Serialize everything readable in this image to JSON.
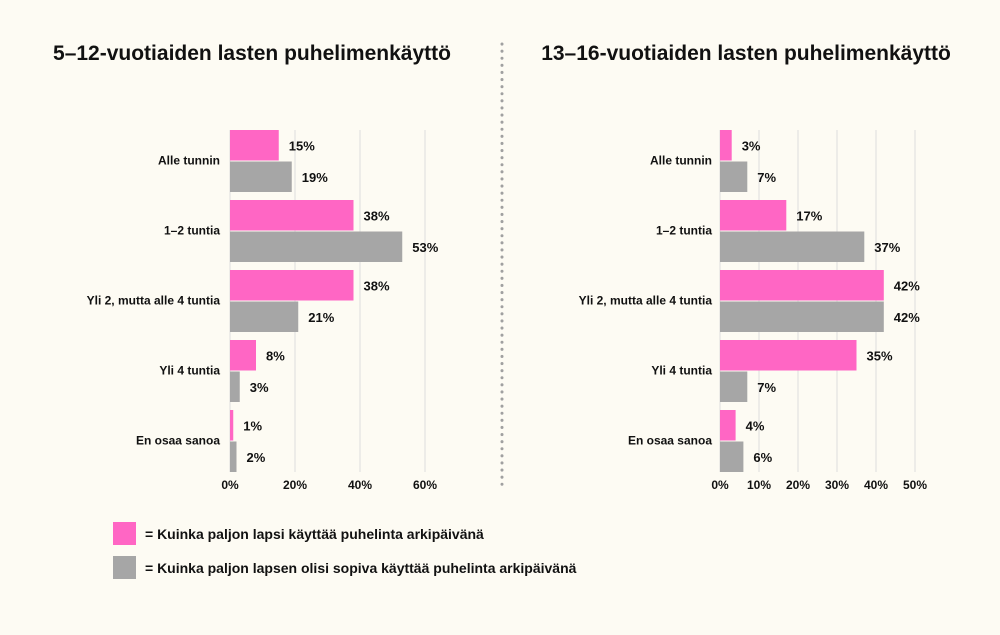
{
  "colors": {
    "pink": "#ff66c4",
    "gray": "#a6a6a6",
    "grid": "#dddddd",
    "divider": "#a0a0a0"
  },
  "legend": [
    {
      "label": "= Kuinka paljon lapsi käyttää puhelinta arkipäivänä",
      "color": "#ff66c4"
    },
    {
      "label": "= Kuinka paljon lapsen olisi sopiva käyttää puhelinta arkipäivänä",
      "color": "#a6a6a6"
    }
  ],
  "chart_data": [
    {
      "type": "bar",
      "orientation": "horizontal",
      "title": "5–12-vuotiaiden lasten puhelimenkäyttö",
      "categories": [
        "Alle tunnin",
        "1–2 tuntia",
        "Yli 2, mutta alle 4 tuntia",
        "Yli 4 tuntia",
        "En osaa sanoa"
      ],
      "series": [
        {
          "color": "#ff66c4",
          "values": [
            15,
            38,
            38,
            8,
            1
          ],
          "labels": [
            "15%",
            "38%",
            "38%",
            "8%",
            "1%"
          ]
        },
        {
          "color": "#a6a6a6",
          "values": [
            19,
            53,
            21,
            3,
            2
          ],
          "labels": [
            "19%",
            "53%",
            "21%",
            "3%",
            "2%"
          ]
        }
      ],
      "xlim": [
        0,
        60
      ],
      "xticks": [
        0,
        20,
        40,
        60
      ],
      "xtick_labels": [
        "0%",
        "20%",
        "40%",
        "60%"
      ],
      "grid": true
    },
    {
      "type": "bar",
      "orientation": "horizontal",
      "title": "13–16-vuotiaiden lasten puhelimenkäyttö",
      "categories": [
        "Alle tunnin",
        "1–2 tuntia",
        "Yli 2, mutta alle 4 tuntia",
        "Yli 4 tuntia",
        "En osaa sanoa"
      ],
      "series": [
        {
          "color": "#ff66c4",
          "values": [
            3,
            17,
            42,
            35,
            4
          ],
          "labels": [
            "3%",
            "17%",
            "42%",
            "35%",
            "4%"
          ]
        },
        {
          "color": "#a6a6a6",
          "values": [
            7,
            37,
            42,
            7,
            6
          ],
          "labels": [
            "7%",
            "37%",
            "42%",
            "7%",
            "6%"
          ]
        }
      ],
      "xlim": [
        0,
        50
      ],
      "xticks": [
        0,
        10,
        20,
        30,
        40,
        50
      ],
      "xtick_labels": [
        "0%",
        "10%",
        "20%",
        "30%",
        "40%",
        "50%"
      ],
      "grid": true
    }
  ]
}
